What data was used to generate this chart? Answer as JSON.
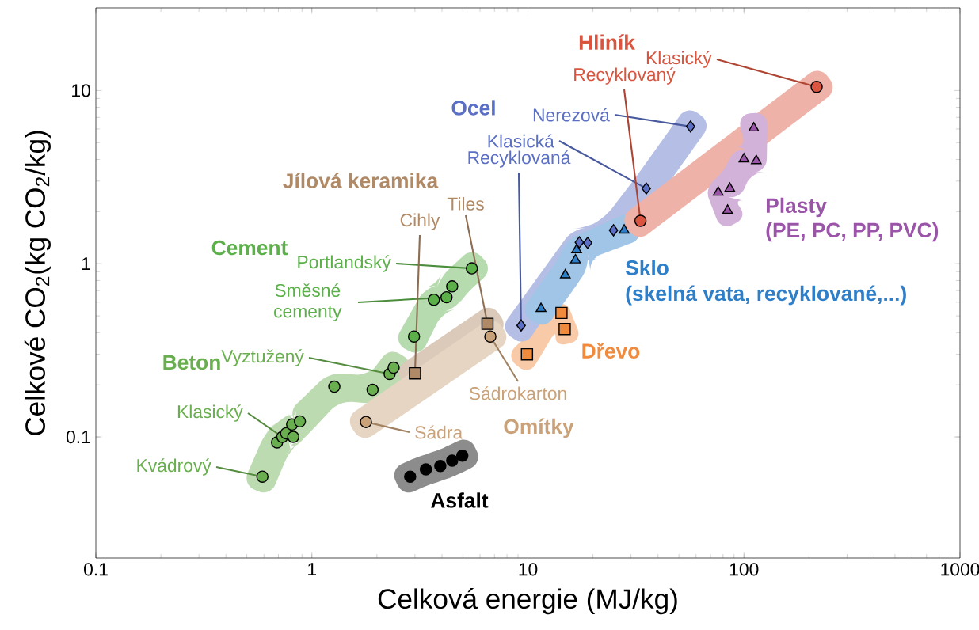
{
  "chart_data": {
    "type": "scatter",
    "xlabel": "Celková energie (MJ/kg)",
    "ylabel": "Celkové CO$_{2}$(kg CO$_{2}$/kg)",
    "log": "xy",
    "xlim": [
      0.1,
      1000
    ],
    "ylim": [
      0.02,
      30
    ],
    "xticks": [
      0.1,
      1,
      10,
      100,
      1000
    ],
    "yticks": [
      0.1,
      1,
      10
    ],
    "grid": false,
    "series": [
      {
        "name": "Beton",
        "color": "#6aaf4f",
        "marker": "circle",
        "x": [
          0.59,
          0.69,
          0.73,
          0.76,
          0.81,
          0.82,
          0.88,
          1.27,
          1.91,
          2.29,
          2.39
        ],
        "values": [
          0.059,
          0.093,
          0.1,
          0.105,
          0.118,
          0.1,
          0.123,
          0.195,
          0.187,
          0.231,
          0.251
        ]
      },
      {
        "name": "Cement",
        "color": "#5cb04a",
        "marker": "circle",
        "x": [
          2.97,
          3.67,
          4.2,
          4.46,
          5.5
        ],
        "values": [
          0.38,
          0.62,
          0.64,
          0.74,
          0.94
        ]
      },
      {
        "name": "Jílová keramika",
        "color": "#b08a66",
        "marker": "square",
        "x": [
          3.0,
          6.5
        ],
        "values": [
          0.233,
          0.45
        ]
      },
      {
        "name": "Omítky",
        "color": "#c9a27a",
        "marker": "circle",
        "x": [
          1.78,
          6.7
        ],
        "values": [
          0.122,
          0.38
        ]
      },
      {
        "name": "Asfalt",
        "color": "#000000",
        "marker": "circle",
        "x": [
          2.85,
          3.37,
          3.93,
          4.46,
          4.97
        ],
        "values": [
          0.059,
          0.065,
          0.068,
          0.073,
          0.078
        ]
      },
      {
        "name": "Dřevo",
        "color": "#f08a3c",
        "marker": "square",
        "x": [
          9.9,
          14.3,
          14.8
        ],
        "values": [
          0.3,
          0.52,
          0.42
        ]
      },
      {
        "name": "Ocel",
        "color": "#5b6fc4",
        "marker": "diamond",
        "x": [
          9.3,
          17.3,
          18.9,
          24.9,
          35.3,
          56.6
        ],
        "values": [
          0.44,
          1.33,
          1.32,
          1.56,
          2.72,
          6.2
        ]
      },
      {
        "name": "Sklo",
        "color": "#2e7fc8",
        "marker": "triangle",
        "x": [
          11.5,
          14.9,
          16.6,
          16.8,
          27.9
        ],
        "values": [
          0.55,
          0.86,
          1.05,
          1.2,
          1.56
        ]
      },
      {
        "name": "Hliník",
        "color": "#d9553f",
        "marker": "circle",
        "x": [
          33.2,
          217
        ],
        "values": [
          1.77,
          10.5
        ]
      },
      {
        "name": "Plasty",
        "color": "#9b55a8",
        "marker": "triangle",
        "x": [
          84,
          76,
          86,
          100,
          114,
          111
        ],
        "values": [
          2.03,
          2.58,
          2.72,
          4.02,
          3.93,
          6.07
        ]
      }
    ],
    "annotations": [
      {
        "text": "Kvádrový",
        "x": 0.59,
        "y": 0.059
      },
      {
        "text": "Klasický",
        "x": 0.73,
        "y": 0.1
      },
      {
        "text": "Vyztužený",
        "x": 2.29,
        "y": 0.231
      },
      {
        "text": "Směsné cementy",
        "x": 4.2,
        "y": 0.64
      },
      {
        "text": "Portlandský",
        "x": 5.5,
        "y": 0.94
      },
      {
        "text": "Cihly",
        "x": 3.0,
        "y": 0.233
      },
      {
        "text": "Tiles",
        "x": 6.5,
        "y": 0.45
      },
      {
        "text": "Sádra",
        "x": 1.78,
        "y": 0.122
      },
      {
        "text": "Sádrokarton",
        "x": 6.7,
        "y": 0.38
      },
      {
        "text": "Nerezová",
        "x": 56.6,
        "y": 6.2
      },
      {
        "text": "Klasická",
        "x": 35.3,
        "y": 2.72
      },
      {
        "text": "Recyklovaná",
        "x": 9.3,
        "y": 0.44
      },
      {
        "text": "Recyklovaný",
        "x": 33.2,
        "y": 1.77
      },
      {
        "text": "Klasický",
        "x": 217,
        "y": 10.5
      },
      "(skelná vata, recyklované,...)",
      "(PE, PC, PP, PVC)"
    ]
  }
}
